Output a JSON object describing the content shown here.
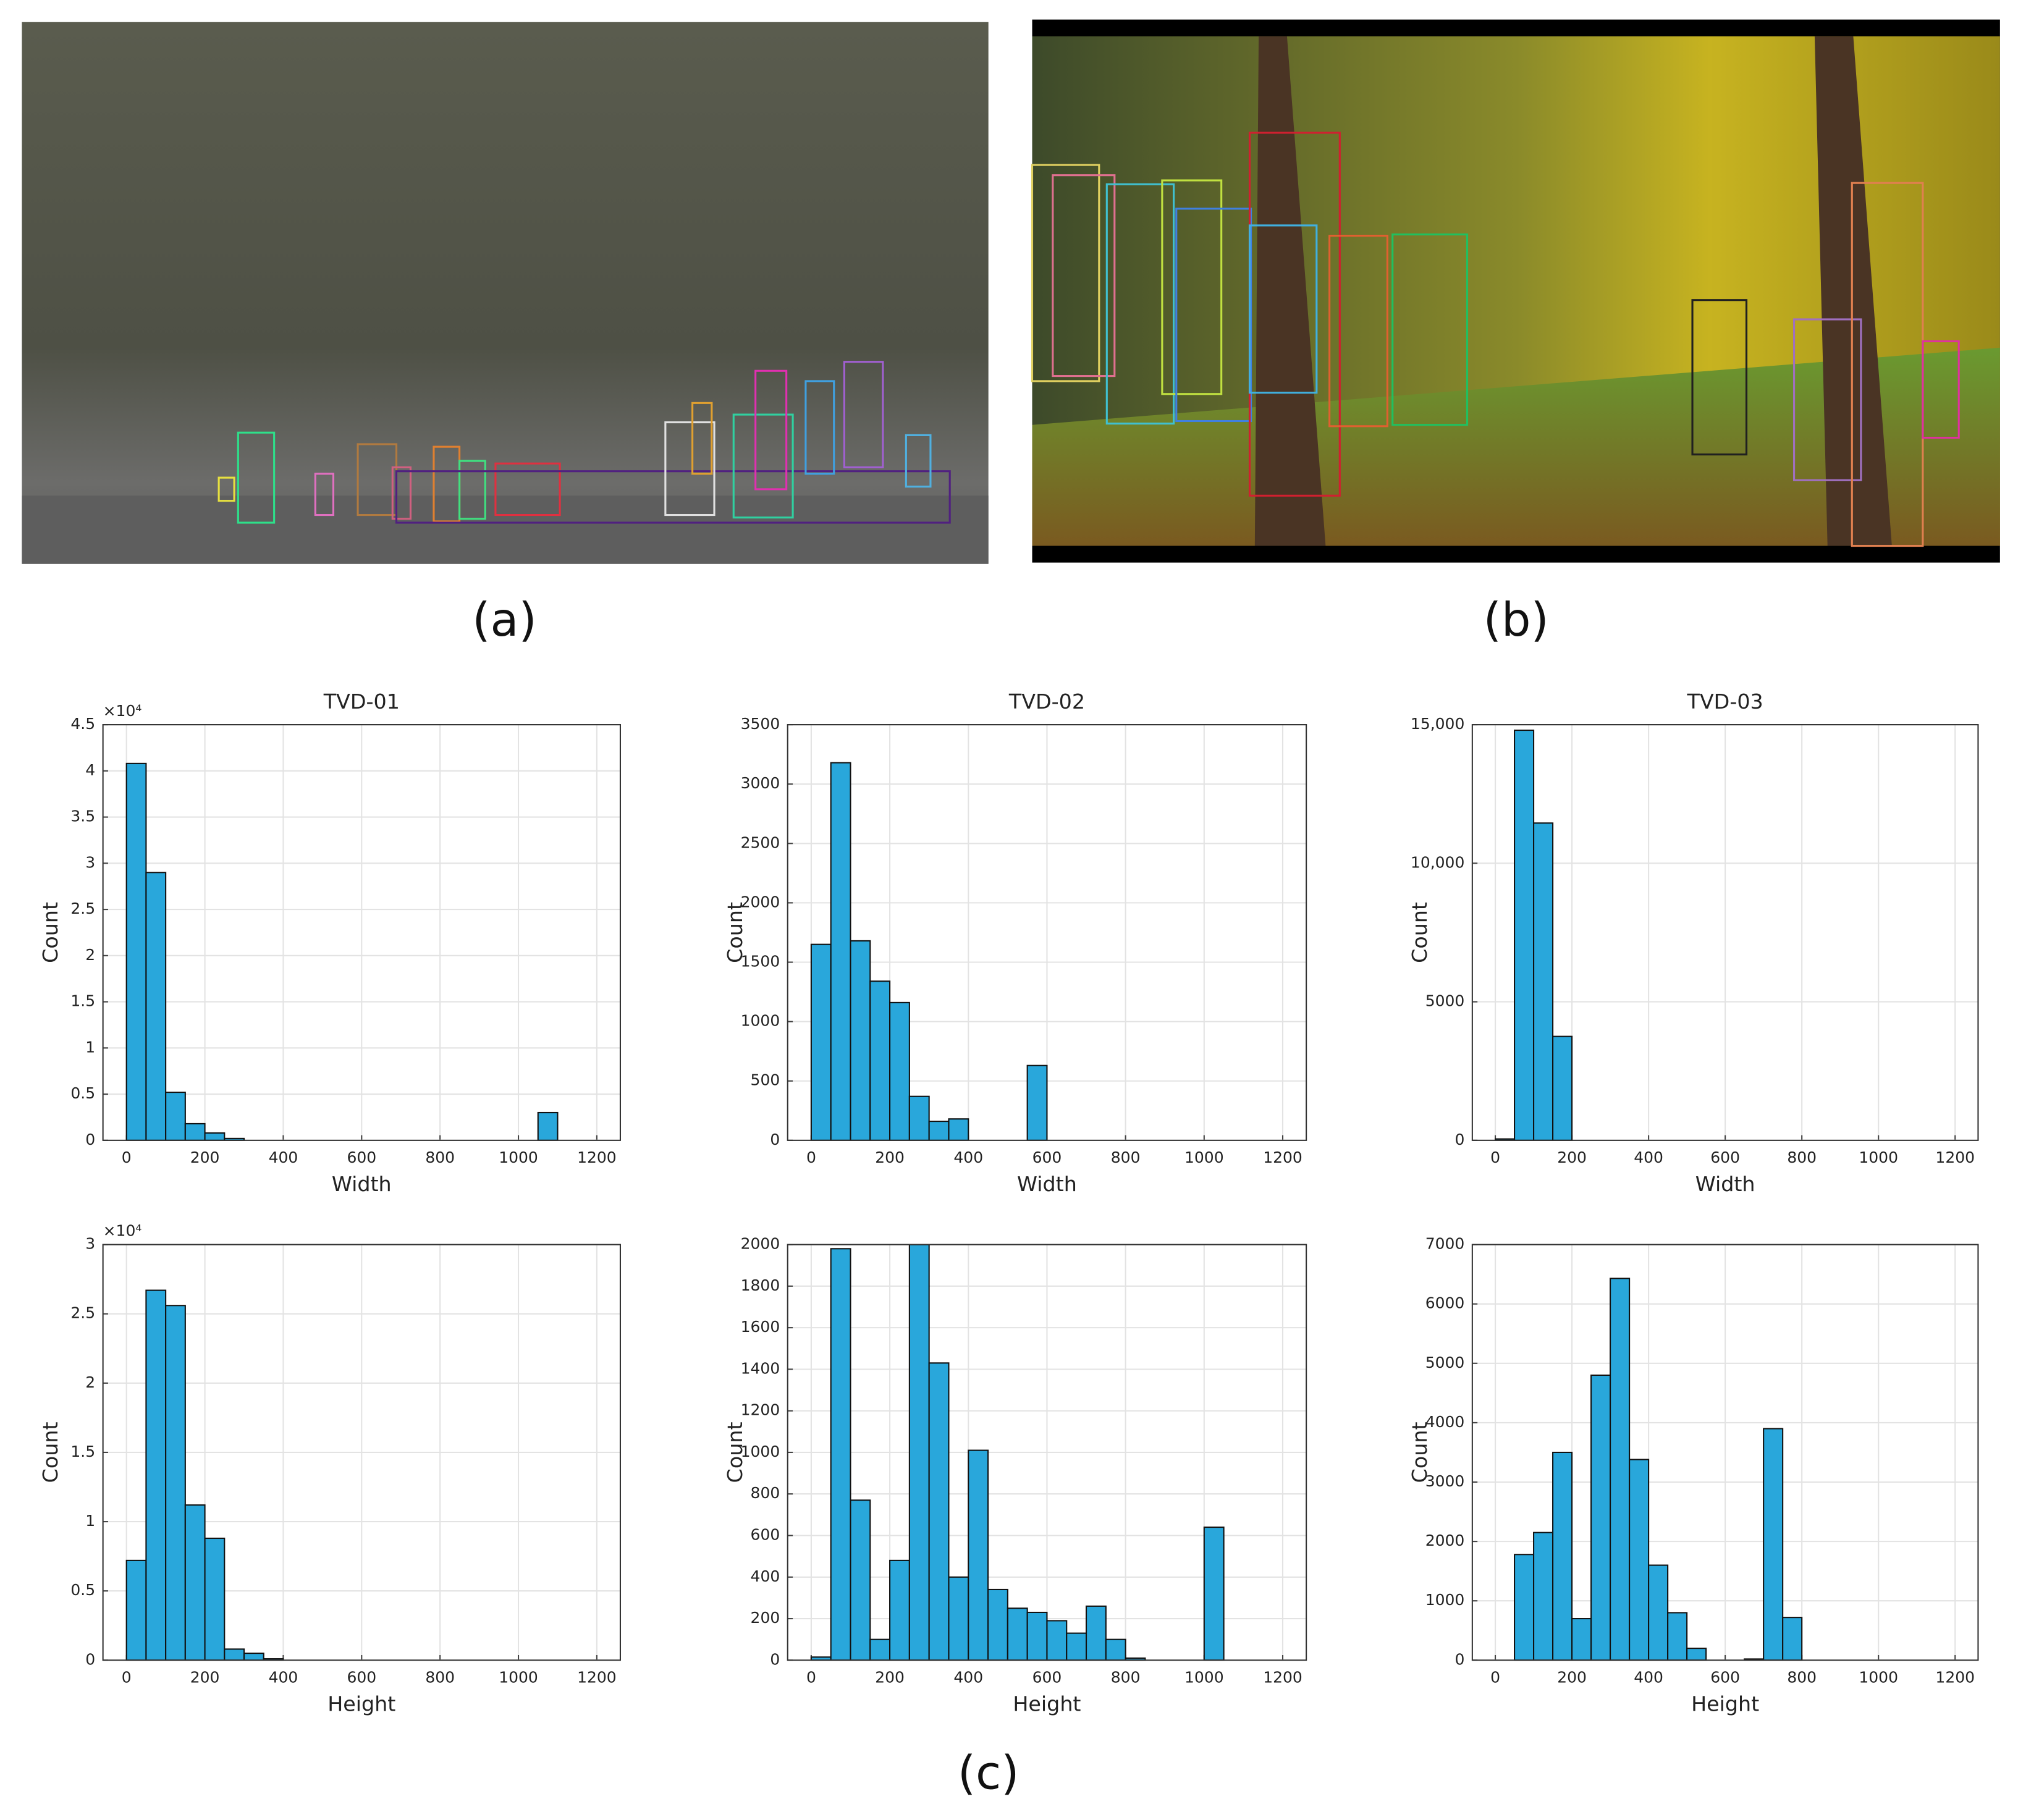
{
  "panel_labels": [
    "(a)",
    "(b)",
    "(c)"
  ],
  "chart_data": [
    {
      "type": "histogram",
      "title": "TVD-01",
      "xlabel": "Width",
      "ylabel": "Count",
      "y_exponent": "×10⁴",
      "bins": [
        0,
        50,
        100,
        150,
        200,
        250,
        300,
        350,
        400,
        450,
        500,
        550,
        600,
        650,
        700,
        750,
        800,
        850,
        900,
        950,
        1000,
        1050,
        1100
      ],
      "counts": [
        4.08,
        2.9,
        0.52,
        0.18,
        0.08,
        0.02,
        0,
        0,
        0,
        0,
        0,
        0,
        0,
        0,
        0,
        0,
        0,
        0,
        0,
        0,
        0,
        0.3
      ],
      "color": "#29a7db",
      "xlim": [
        -60,
        1260
      ],
      "ylim": [
        0,
        4.5
      ],
      "xticks": [
        0,
        200,
        400,
        600,
        800,
        1000,
        1200
      ],
      "yticks": [
        0,
        0.5,
        1,
        1.5,
        2,
        2.5,
        3,
        3.5,
        4,
        4.5
      ],
      "grid": true
    },
    {
      "type": "histogram",
      "title": "TVD-02",
      "xlabel": "Width",
      "ylabel": "Count",
      "bins": [
        0,
        50,
        100,
        150,
        200,
        250,
        300,
        350,
        400,
        450,
        500,
        550,
        600
      ],
      "counts": [
        1650,
        3180,
        1680,
        1340,
        1160,
        370,
        160,
        180,
        0,
        0,
        0,
        630
      ],
      "color": "#29a7db",
      "xlim": [
        -60,
        1260
      ],
      "ylim": [
        0,
        3500
      ],
      "xticks": [
        0,
        200,
        400,
        600,
        800,
        1000,
        1200
      ],
      "yticks": [
        0,
        500,
        1000,
        1500,
        2000,
        2500,
        3000,
        3500
      ],
      "grid": true
    },
    {
      "type": "histogram",
      "title": "TVD-03",
      "xlabel": "Width",
      "ylabel": "Count",
      "bins": [
        0,
        50,
        100,
        150,
        200
      ],
      "counts": [
        50,
        14800,
        11450,
        3750
      ],
      "color": "#29a7db",
      "xlim": [
        -60,
        1260
      ],
      "ylim": [
        0,
        15000
      ],
      "xticks": [
        0,
        200,
        400,
        600,
        800,
        1000,
        1200
      ],
      "yticks": [
        0,
        5000,
        {
          "value": 10000,
          "label": "10,000"
        },
        {
          "value": 15000,
          "label": "15,000"
        }
      ],
      "grid": true
    },
    {
      "type": "histogram",
      "xlabel": "Height",
      "ylabel": "Count",
      "y_exponent": "×10⁴",
      "bins": [
        0,
        50,
        100,
        150,
        200,
        250,
        300,
        350,
        400
      ],
      "counts": [
        0.72,
        2.67,
        2.56,
        1.12,
        0.88,
        0.08,
        0.05,
        0.01
      ],
      "color": "#29a7db",
      "xlim": [
        -60,
        1260
      ],
      "ylim": [
        0,
        3
      ],
      "xticks": [
        0,
        200,
        400,
        600,
        800,
        1000,
        1200
      ],
      "yticks": [
        0,
        0.5,
        1,
        1.5,
        2,
        2.5,
        3
      ],
      "grid": true
    },
    {
      "type": "histogram",
      "xlabel": "Height",
      "ylabel": "Count",
      "bins": [
        0,
        50,
        100,
        150,
        200,
        250,
        300,
        350,
        400,
        450,
        500,
        550,
        600,
        650,
        700,
        750,
        800,
        850,
        900,
        950,
        1000,
        1050
      ],
      "counts": [
        15,
        1980,
        770,
        100,
        480,
        2000,
        1430,
        400,
        1010,
        340,
        250,
        230,
        190,
        130,
        260,
        100,
        10,
        0,
        0,
        0,
        640
      ],
      "color": "#29a7db",
      "xlim": [
        -60,
        1260
      ],
      "ylim": [
        0,
        2000
      ],
      "xticks": [
        0,
        200,
        400,
        600,
        800,
        1000,
        1200
      ],
      "yticks": [
        0,
        200,
        400,
        600,
        800,
        1000,
        1200,
        1400,
        1600,
        1800,
        2000
      ],
      "grid": true
    },
    {
      "type": "histogram",
      "xlabel": "Height",
      "ylabel": "Count",
      "bins": [
        0,
        50,
        100,
        150,
        200,
        250,
        300,
        350,
        400,
        450,
        500,
        550,
        600,
        650,
        700,
        750,
        800
      ],
      "counts": [
        0,
        1780,
        2150,
        3500,
        700,
        4800,
        6430,
        3380,
        1600,
        800,
        200,
        0,
        0,
        20,
        3900,
        720
      ],
      "color": "#29a7db",
      "xlim": [
        -60,
        1260
      ],
      "ylim": [
        0,
        7000
      ],
      "xticks": [
        0,
        200,
        400,
        600,
        800,
        1000,
        1200
      ],
      "yticks": [
        0,
        1000,
        2000,
        3000,
        4000,
        5000,
        6000,
        7000
      ],
      "grid": true
    }
  ]
}
